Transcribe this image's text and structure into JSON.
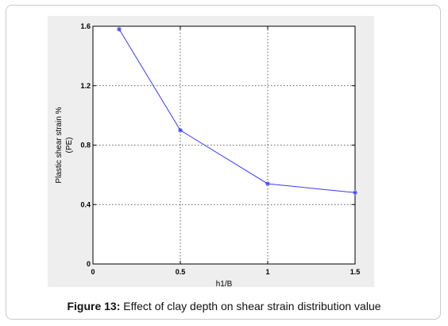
{
  "chart_data": {
    "type": "line",
    "title": "",
    "xlabel": "h1/B",
    "ylabel_lines": [
      "Plastic shear strain %",
      "(PE)"
    ],
    "xlim": [
      0,
      1.5
    ],
    "ylim": [
      0,
      1.6
    ],
    "xticks": [
      0,
      0.5,
      1,
      1.5
    ],
    "xtick_labels": [
      "0",
      "0.5",
      "1",
      "1.5"
    ],
    "yticks": [
      0,
      0.4,
      0.8,
      1.2,
      1.6
    ],
    "ytick_labels": [
      "0",
      "0.4",
      "0.8",
      "1.2",
      "1.6"
    ],
    "grid": true,
    "series": [
      {
        "x": [
          0.15,
          0.5,
          1.0,
          1.5
        ],
        "y": [
          1.58,
          0.9,
          0.54,
          0.48
        ],
        "color": "#3a3aff",
        "marker": "asterisk"
      }
    ]
  },
  "caption": {
    "label": "Figure 13:",
    "text": " Effect of clay depth on shear strain distribution value"
  }
}
